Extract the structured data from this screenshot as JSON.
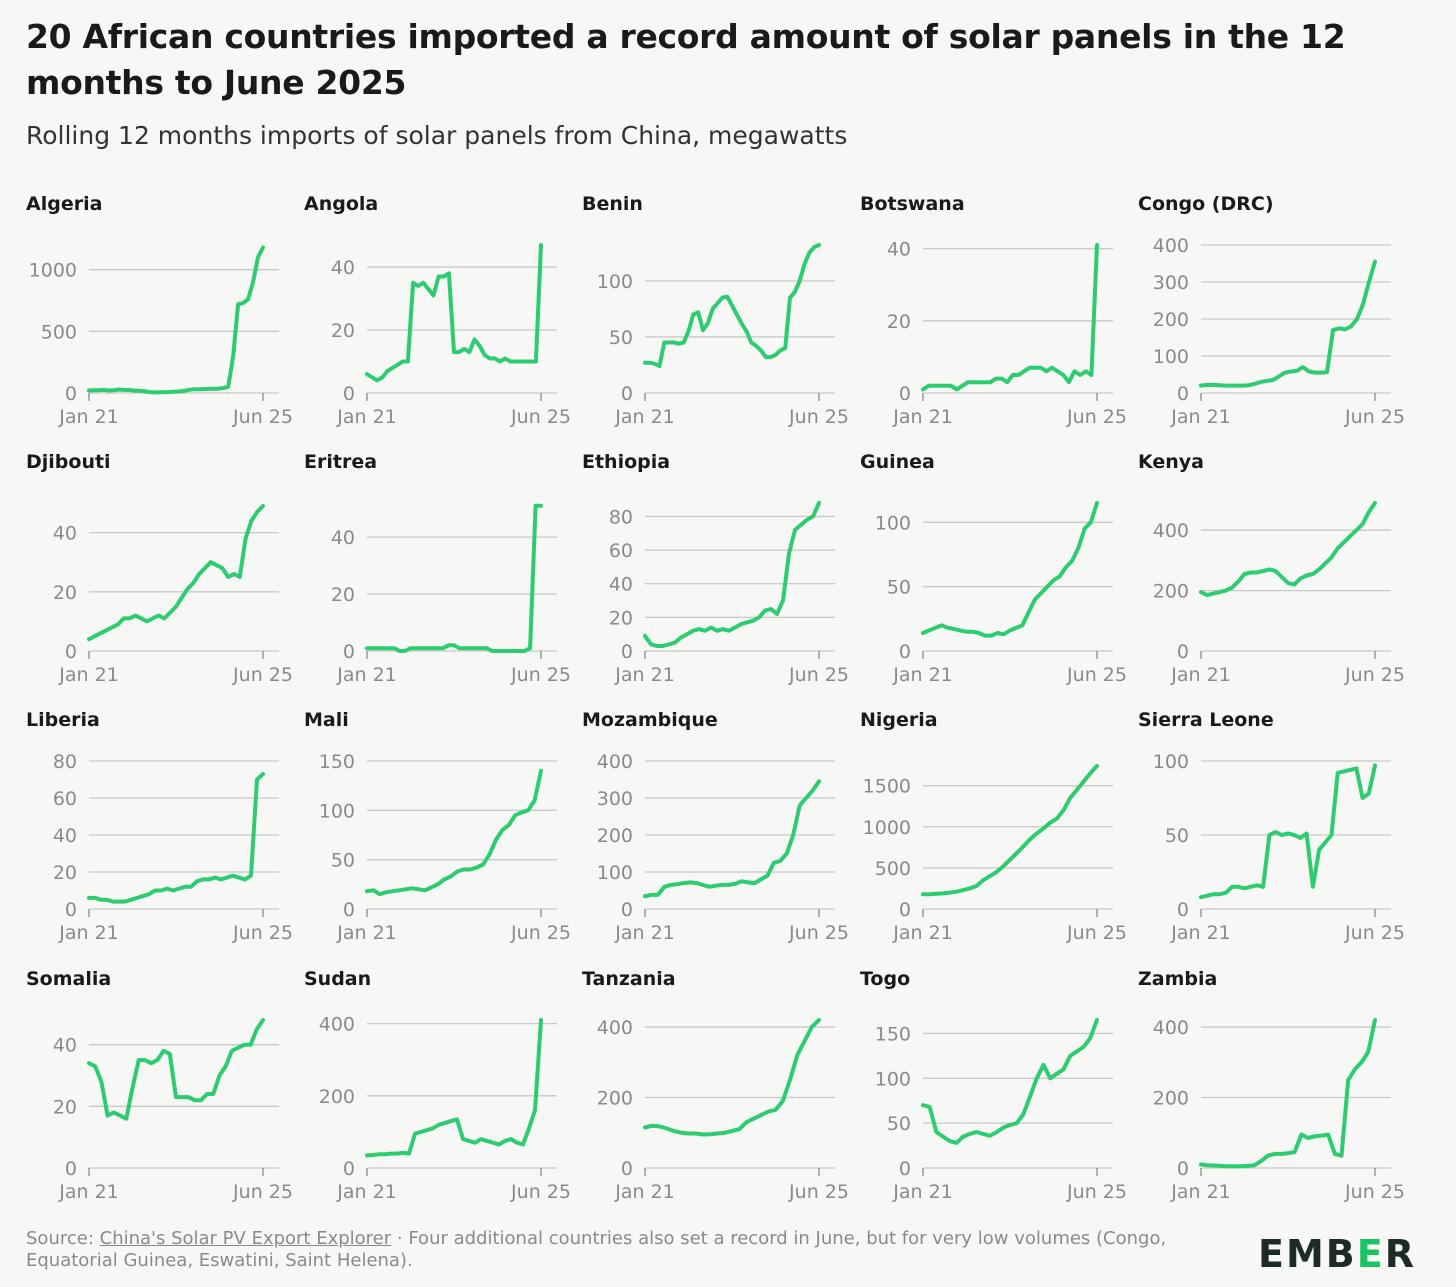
{
  "title": "20 African countries imported a record amount of solar panels in the 12 months to June 2025",
  "subtitle": "Rolling 12 months imports of solar panels from China, megawatts",
  "footer": {
    "source_label": "Source:",
    "source_link": "China's Solar PV Export Explorer",
    "note": "· Four additional countries also set a record in June, but for very low volumes (Congo, Equatorial Guinea, Eswatini, Saint Helena)."
  },
  "logo": {
    "part1": "EMB",
    "part2": "E",
    "part3": "R"
  },
  "colors": {
    "line": "#2ecc71",
    "grid": "#c8c8c8",
    "tick": "#8a8a8a"
  },
  "chart_data": [
    {
      "type": "line",
      "title": "Algeria",
      "x_start": "Jan 21",
      "x_end": "Jun 25",
      "y_ticks": [
        0,
        500,
        1000
      ],
      "ylim": [
        0,
        1200
      ],
      "values": [
        20,
        22,
        22,
        25,
        20,
        22,
        28,
        25,
        24,
        20,
        18,
        15,
        8,
        5,
        5,
        7,
        7,
        10,
        12,
        15,
        25,
        30,
        30,
        32,
        33,
        35,
        35,
        40,
        50,
        300,
        720,
        730,
        760,
        900,
        1100,
        1180
      ]
    },
    {
      "type": "line",
      "title": "Angola",
      "x_start": "Jan 21",
      "x_end": "Jun 25",
      "y_ticks": [
        0,
        20,
        40
      ],
      "ylim": [
        0,
        47
      ],
      "values": [
        6,
        5,
        4,
        5,
        7,
        8,
        9,
        10,
        10,
        35,
        34,
        35,
        33,
        31,
        37,
        37,
        38,
        13,
        13,
        14,
        13,
        17,
        15,
        12,
        11,
        11,
        10,
        11,
        10,
        10,
        10,
        10,
        10,
        10,
        47
      ]
    },
    {
      "type": "line",
      "title": "Benin",
      "x_start": "Jan 21",
      "x_end": "Jun 25",
      "y_ticks": [
        0,
        50,
        100
      ],
      "ylim": [
        0,
        132
      ],
      "values": [
        27,
        27,
        26,
        24,
        45,
        45,
        45,
        44,
        45,
        55,
        70,
        72,
        56,
        62,
        75,
        80,
        85,
        86,
        78,
        70,
        62,
        55,
        45,
        42,
        38,
        32,
        32,
        34,
        38,
        40,
        85,
        90,
        100,
        115,
        125,
        130,
        132
      ]
    },
    {
      "type": "line",
      "title": "Botswana",
      "x_start": "Jan 21",
      "x_end": "Jun 25",
      "y_ticks": [
        0,
        20,
        40
      ],
      "ylim": [
        0,
        41
      ],
      "values": [
        1,
        2,
        2,
        2,
        2,
        2,
        1,
        2,
        3,
        3,
        3,
        3,
        3,
        4,
        4,
        3,
        5,
        5,
        6,
        7,
        7,
        7,
        6,
        7,
        6,
        5,
        3,
        6,
        5,
        6,
        5,
        41
      ]
    },
    {
      "type": "line",
      "title": "Congo (DRC)",
      "x_start": "Jan 21",
      "x_end": "Jun 25",
      "y_ticks": [
        0,
        100,
        200,
        300,
        400
      ],
      "ylim": [
        0,
        400
      ],
      "values": [
        20,
        22,
        22,
        21,
        20,
        20,
        20,
        20,
        21,
        25,
        30,
        33,
        35,
        45,
        55,
        58,
        60,
        70,
        58,
        55,
        55,
        56,
        170,
        175,
        172,
        180,
        200,
        240,
        300,
        355
      ]
    },
    {
      "type": "line",
      "title": "Djibouti",
      "x_start": "Jan 21",
      "x_end": "Jun 25",
      "y_ticks": [
        0,
        20,
        40
      ],
      "ylim": [
        0,
        50
      ],
      "values": [
        4,
        5,
        6,
        7,
        8,
        9,
        11,
        11,
        12,
        11,
        10,
        11,
        12,
        11,
        13,
        15,
        18,
        21,
        23,
        26,
        28,
        30,
        29,
        28,
        25,
        26,
        25,
        38,
        44,
        47,
        49
      ]
    },
    {
      "type": "line",
      "title": "Eritrea",
      "x_start": "Jan 21",
      "x_end": "Jun 25",
      "y_ticks": [
        0,
        20,
        40
      ],
      "ylim": [
        0,
        52
      ],
      "values": [
        1,
        1,
        1,
        1,
        1,
        1,
        0,
        0,
        1,
        1,
        1,
        1,
        1,
        1,
        1,
        2,
        2,
        1,
        1,
        1,
        1,
        1,
        1,
        0,
        0,
        0,
        0,
        0,
        0,
        0,
        1,
        51,
        51
      ]
    },
    {
      "type": "line",
      "title": "Ethiopia",
      "x_start": "Jan 21",
      "x_end": "Jun 25",
      "y_ticks": [
        0,
        20,
        40,
        60,
        80
      ],
      "ylim": [
        0,
        88
      ],
      "values": [
        9,
        4,
        3,
        3,
        4,
        5,
        8,
        10,
        12,
        13,
        12,
        14,
        12,
        13,
        12,
        14,
        16,
        17,
        18,
        20,
        24,
        25,
        22,
        30,
        58,
        72,
        75,
        78,
        80,
        88
      ]
    },
    {
      "type": "line",
      "title": "Guinea",
      "x_start": "Jan 21",
      "x_end": "Jun 25",
      "y_ticks": [
        0,
        50,
        100
      ],
      "ylim": [
        0,
        115
      ],
      "values": [
        14,
        16,
        18,
        20,
        18,
        17,
        16,
        15,
        15,
        14,
        12,
        12,
        14,
        13,
        16,
        18,
        20,
        30,
        40,
        45,
        50,
        55,
        58,
        65,
        70,
        80,
        95,
        100,
        115
      ]
    },
    {
      "type": "line",
      "title": "Kenya",
      "x_start": "Jan 21",
      "x_end": "Jun 25",
      "y_ticks": [
        0,
        200,
        400
      ],
      "ylim": [
        0,
        490
      ],
      "values": [
        195,
        185,
        190,
        195,
        200,
        210,
        230,
        255,
        260,
        260,
        265,
        270,
        265,
        245,
        225,
        220,
        240,
        250,
        255,
        270,
        290,
        310,
        340,
        360,
        380,
        400,
        420,
        460,
        490
      ]
    },
    {
      "type": "line",
      "title": "Liberia",
      "x_start": "Jan 21",
      "x_end": "Jun 25",
      "y_ticks": [
        0,
        20,
        40,
        60,
        80
      ],
      "ylim": [
        0,
        80
      ],
      "values": [
        6,
        6,
        5,
        5,
        4,
        4,
        4,
        5,
        6,
        7,
        8,
        10,
        10,
        11,
        10,
        11,
        12,
        12,
        15,
        16,
        16,
        17,
        16,
        17,
        18,
        17,
        16,
        18,
        70,
        73
      ]
    },
    {
      "type": "line",
      "title": "Mali",
      "x_start": "Jan 21",
      "x_end": "Jun 25",
      "y_ticks": [
        0,
        50,
        100,
        150
      ],
      "ylim": [
        0,
        150
      ],
      "values": [
        18,
        19,
        15,
        17,
        18,
        19,
        20,
        21,
        20,
        19,
        22,
        25,
        30,
        33,
        38,
        40,
        40,
        42,
        45,
        55,
        70,
        80,
        85,
        95,
        98,
        100,
        110,
        140
      ]
    },
    {
      "type": "line",
      "title": "Mozambique",
      "x_start": "Jan 21",
      "x_end": "Jun 25",
      "y_ticks": [
        0,
        100,
        200,
        300,
        400
      ],
      "ylim": [
        0,
        400
      ],
      "values": [
        35,
        38,
        38,
        60,
        65,
        67,
        70,
        72,
        70,
        65,
        60,
        63,
        65,
        65,
        68,
        75,
        72,
        70,
        80,
        90,
        125,
        130,
        150,
        200,
        280,
        300,
        320,
        345
      ]
    },
    {
      "type": "line",
      "title": "Nigeria",
      "x_start": "Jan 21",
      "x_end": "Jun 25",
      "y_ticks": [
        0,
        500,
        1000,
        1500
      ],
      "ylim": [
        0,
        1800
      ],
      "values": [
        180,
        180,
        185,
        190,
        200,
        210,
        230,
        250,
        280,
        350,
        400,
        450,
        520,
        600,
        680,
        760,
        850,
        920,
        980,
        1050,
        1100,
        1200,
        1350,
        1450,
        1550,
        1650,
        1740
      ]
    },
    {
      "type": "line",
      "title": "Sierra Leone",
      "x_start": "Jan 21",
      "x_end": "Jun 25",
      "y_ticks": [
        0,
        50,
        100
      ],
      "ylim": [
        0,
        100
      ],
      "values": [
        8,
        9,
        10,
        10,
        11,
        15,
        15,
        14,
        15,
        16,
        15,
        50,
        52,
        50,
        51,
        50,
        48,
        51,
        15,
        40,
        45,
        50,
        92,
        93,
        94,
        95,
        75,
        78,
        97
      ]
    },
    {
      "type": "line",
      "title": "Somalia",
      "x_start": "Jan 21",
      "x_end": "Jun 25",
      "y_ticks": [
        0,
        20,
        40
      ],
      "ylim": [
        0,
        48
      ],
      "values": [
        34,
        33,
        28,
        17,
        18,
        17,
        16,
        26,
        35,
        35,
        34,
        35,
        38,
        37,
        23,
        23,
        23,
        22,
        22,
        24,
        24,
        30,
        33,
        38,
        39,
        40,
        40,
        45,
        48
      ]
    },
    {
      "type": "line",
      "title": "Sudan",
      "x_start": "Jan 21",
      "x_end": "Jun 25",
      "y_ticks": [
        0,
        200,
        400
      ],
      "ylim": [
        0,
        410
      ],
      "values": [
        35,
        36,
        38,
        38,
        40,
        40,
        42,
        40,
        95,
        100,
        105,
        110,
        120,
        125,
        130,
        135,
        80,
        75,
        70,
        80,
        75,
        70,
        65,
        75,
        80,
        70,
        65,
        110,
        160,
        410
      ]
    },
    {
      "type": "line",
      "title": "Tanzania",
      "x_start": "Jan 21",
      "x_end": "Jun 25",
      "y_ticks": [
        0,
        200,
        400
      ],
      "ylim": [
        0,
        420
      ],
      "values": [
        115,
        120,
        118,
        112,
        105,
        100,
        98,
        98,
        95,
        96,
        98,
        100,
        105,
        110,
        130,
        140,
        150,
        160,
        165,
        190,
        250,
        320,
        360,
        400,
        420
      ]
    },
    {
      "type": "line",
      "title": "Togo",
      "x_start": "Jan 21",
      "x_end": "Jun 25",
      "y_ticks": [
        0,
        50,
        100,
        150
      ],
      "ylim": [
        0,
        165
      ],
      "values": [
        70,
        68,
        40,
        35,
        30,
        28,
        35,
        38,
        40,
        38,
        36,
        40,
        45,
        48,
        50,
        60,
        80,
        100,
        115,
        100,
        105,
        110,
        125,
        130,
        135,
        145,
        165
      ]
    },
    {
      "type": "line",
      "title": "Zambia",
      "x_start": "Jan 21",
      "x_end": "Jun 25",
      "y_ticks": [
        0,
        200,
        400
      ],
      "ylim": [
        0,
        420
      ],
      "values": [
        10,
        8,
        7,
        6,
        5,
        5,
        5,
        6,
        8,
        20,
        35,
        40,
        40,
        42,
        45,
        95,
        85,
        90,
        92,
        95,
        40,
        35,
        250,
        280,
        300,
        330,
        420
      ]
    }
  ]
}
